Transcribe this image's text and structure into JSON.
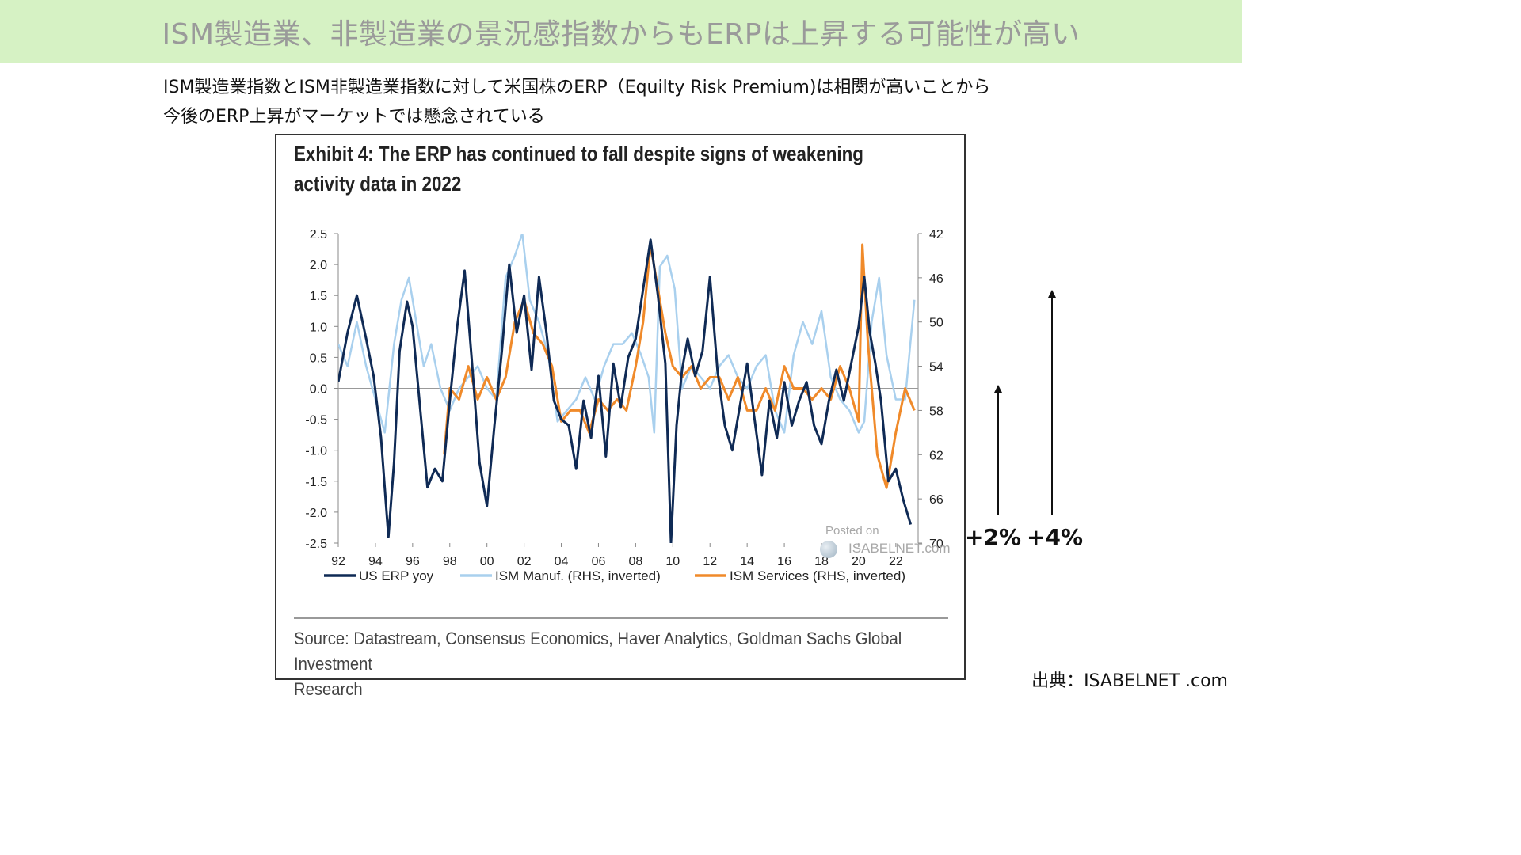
{
  "banner": {
    "title": "ISM製造業、非製造業の景況感指数からもERPは上昇する可能性が高い"
  },
  "intro": {
    "line1": "ISM製造業指数とISM非製造業指数に対して米国株のERP（Equilty Risk Premium)は相関が高いことから",
    "line2": "今後のERP上昇がマーケットでは懸念されている"
  },
  "exhibit": {
    "title_line1": "Exhibit 4: The ERP has continued to fall despite signs of weakening",
    "title_line2": "activity data in 2022",
    "source_line1": "Source: Datastream, Consensus Economics, Haver Analytics, Goldman Sachs Global Investment",
    "source_line2": "Research",
    "watermark_posted": "Posted on",
    "watermark_site": "ISABELNET.com"
  },
  "annotations": {
    "arrow_small_label": "+2%",
    "arrow_large_label": "+4%"
  },
  "credit": "出典：ISABELNET .com",
  "colors": {
    "erp": "#0f2a55",
    "ism_manuf": "#a9d0ee",
    "ism_services": "#f08a2a",
    "banner_bg": "#d6f2c4"
  },
  "chart_data": {
    "type": "line",
    "title": "Exhibit 4: The ERP has continued to fall despite signs of weakening activity data in 2022",
    "x_tick_labels": [
      "92",
      "94",
      "96",
      "98",
      "00",
      "02",
      "04",
      "06",
      "08",
      "10",
      "12",
      "14",
      "16",
      "18",
      "20",
      "22"
    ],
    "x_ticks_year": [
      1992,
      1994,
      1996,
      1998,
      2000,
      2002,
      2004,
      2006,
      2008,
      2010,
      2012,
      2014,
      2016,
      2018,
      2020,
      2022
    ],
    "x_range": [
      1992,
      2023.2
    ],
    "y_left": {
      "range": [
        -2.5,
        2.5
      ],
      "ticks": [
        "2.5",
        "2.0",
        "1.5",
        "1.0",
        "0.5",
        "0.0",
        "-0.5",
        "-1.0",
        "-1.5",
        "-2.0",
        "-2.5"
      ]
    },
    "y_right": {
      "range": [
        42,
        70
      ],
      "inverted": true,
      "ticks": [
        "42",
        "46",
        "50",
        "54",
        "58",
        "62",
        "66",
        "70"
      ]
    },
    "legend_placement": "bottom",
    "series": [
      {
        "name": "US ERP yoy",
        "axis": "left",
        "x": [
          1992,
          1992.5,
          1993,
          1993.5,
          1993.9,
          1994.3,
          1994.7,
          1995.0,
          1995.3,
          1995.7,
          1996.0,
          1996.4,
          1996.8,
          1997.2,
          1997.6,
          1998.0,
          1998.4,
          1998.8,
          1999.2,
          1999.6,
          2000.0,
          2000.4,
          2000.8,
          2001.2,
          2001.6,
          2002.0,
          2002.4,
          2002.8,
          2003.2,
          2003.6,
          2004.0,
          2004.4,
          2004.8,
          2005.2,
          2005.6,
          2006.0,
          2006.4,
          2006.8,
          2007.2,
          2007.6,
          2008.0,
          2008.4,
          2008.8,
          2009.2,
          2009.6,
          2009.9,
          2010.2,
          2010.5,
          2010.8,
          2011.2,
          2011.6,
          2012.0,
          2012.4,
          2012.8,
          2013.2,
          2013.6,
          2014.0,
          2014.4,
          2014.8,
          2015.2,
          2015.6,
          2016.0,
          2016.4,
          2016.8,
          2017.2,
          2017.6,
          2018.0,
          2018.4,
          2018.8,
          2019.2,
          2019.6,
          2020.0,
          2020.3,
          2020.6,
          2020.9,
          2021.2,
          2021.6,
          2022.0,
          2022.4,
          2022.8
        ],
        "y": [
          0.1,
          0.9,
          1.5,
          0.8,
          0.2,
          -0.8,
          -2.4,
          -1.2,
          0.6,
          1.4,
          1.0,
          -0.3,
          -1.6,
          -1.3,
          -1.5,
          -0.2,
          1.0,
          1.9,
          0.4,
          -1.2,
          -1.9,
          -0.6,
          0.6,
          2.0,
          0.9,
          1.5,
          0.3,
          1.8,
          0.9,
          -0.2,
          -0.5,
          -0.6,
          -1.3,
          -0.2,
          -0.8,
          0.2,
          -1.1,
          0.4,
          -0.3,
          0.5,
          0.8,
          1.6,
          2.4,
          1.5,
          0.4,
          -2.5,
          -0.6,
          0.3,
          0.8,
          0.2,
          0.6,
          1.8,
          0.3,
          -0.6,
          -1.0,
          -0.3,
          0.4,
          -0.5,
          -1.4,
          -0.2,
          -0.8,
          0.1,
          -0.6,
          -0.2,
          0.1,
          -0.6,
          -0.9,
          -0.2,
          0.3,
          -0.2,
          0.4,
          1.0,
          1.8,
          0.9,
          0.4,
          -0.2,
          -1.5,
          -1.3,
          -1.8,
          -2.2
        ]
      },
      {
        "name": "ISM Manuf. (RHS, inverted)",
        "axis": "right",
        "x": [
          1992,
          1992.5,
          1993,
          1993.5,
          1994,
          1994.5,
          1995,
          1995.4,
          1995.8,
          1996.2,
          1996.6,
          1997,
          1997.5,
          1998,
          1998.5,
          1999,
          1999.5,
          2000,
          2000.5,
          2001,
          2001.5,
          2001.9,
          2002.3,
          2002.8,
          2003.3,
          2003.8,
          2004.3,
          2004.8,
          2005.3,
          2005.8,
          2006.3,
          2006.8,
          2007.3,
          2007.8,
          2008.3,
          2008.7,
          2009.0,
          2009.3,
          2009.7,
          2010.1,
          2010.5,
          2011.0,
          2011.5,
          2012.0,
          2012.5,
          2013.0,
          2013.5,
          2014.0,
          2014.5,
          2015.0,
          2015.5,
          2016.0,
          2016.5,
          2017.0,
          2017.5,
          2018.0,
          2018.5,
          2019.0,
          2019.5,
          2020.0,
          2020.3,
          2020.7,
          2021.1,
          2021.5,
          2022.0,
          2022.5,
          2023.0
        ],
        "y": [
          52,
          54,
          50,
          54,
          57,
          60,
          52,
          48,
          46,
          50,
          54,
          52,
          56,
          58,
          56,
          55,
          54,
          56,
          57,
          46,
          44,
          42,
          48,
          50,
          53,
          59,
          58,
          57,
          55,
          57,
          54,
          52,
          52,
          51,
          53,
          55,
          60,
          45,
          44,
          47,
          56,
          54,
          55,
          56,
          54,
          53,
          55,
          56,
          54,
          53,
          58,
          60,
          53,
          50,
          52,
          49,
          55,
          57,
          58,
          60,
          59,
          50,
          46,
          53,
          57,
          57,
          48
        ]
      },
      {
        "name": "ISM Services (RHS, inverted)",
        "axis": "right",
        "x": [
          1997.7,
          1998.0,
          1998.5,
          1999,
          1999.5,
          2000,
          2000.5,
          2001,
          2001.5,
          2002,
          2002.5,
          2003,
          2003.5,
          2004,
          2004.5,
          2005,
          2005.5,
          2006,
          2006.5,
          2007,
          2007.5,
          2008,
          2008.4,
          2008.8,
          2009.2,
          2009.6,
          2010.0,
          2010.5,
          2011,
          2011.5,
          2012,
          2012.5,
          2013,
          2013.5,
          2014,
          2014.5,
          2015,
          2015.5,
          2016,
          2016.5,
          2017,
          2017.5,
          2018,
          2018.5,
          2019,
          2019.5,
          2020,
          2020.2,
          2020.5,
          2021,
          2021.5,
          2022,
          2022.5,
          2023.0
        ],
        "y": [
          62,
          56,
          57,
          54,
          57,
          55,
          57,
          55,
          50,
          48,
          51,
          52,
          54,
          59,
          58,
          58,
          60,
          57,
          58,
          57,
          58,
          54,
          50,
          43,
          47,
          51,
          54,
          55,
          54,
          56,
          55,
          55,
          57,
          55,
          58,
          58,
          56,
          58,
          54,
          56,
          56,
          57,
          56,
          57,
          54,
          56,
          59,
          43,
          52,
          62,
          65,
          60,
          56,
          58
        ]
      }
    ]
  }
}
